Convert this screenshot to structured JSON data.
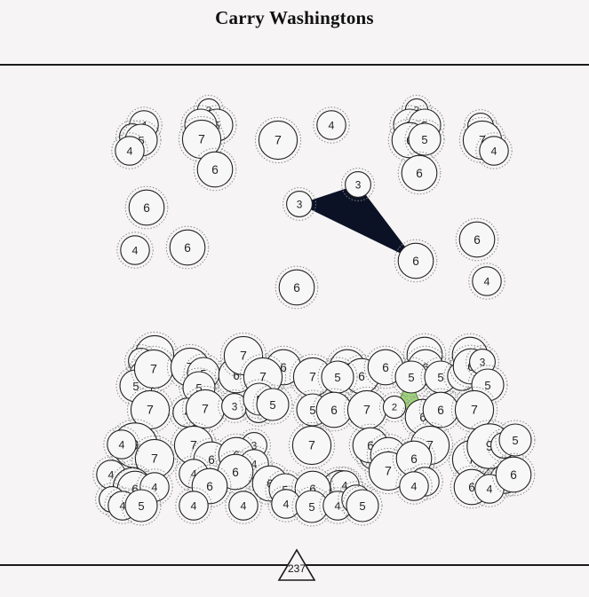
{
  "title": "Carry Washingtons",
  "score": "237",
  "colors": {
    "background": "#f6f4f5",
    "active_triangle": "#0c1226",
    "highlight_hex": "#9fd27a",
    "node_fill": "#f8f7f8",
    "node_stroke": "#222222"
  },
  "nodes": [
    {
      "label": "4"
    },
    {
      "label": "3"
    },
    {
      "label": "5"
    },
    {
      "label": "4"
    },
    {
      "label": "2"
    },
    {
      "label": "5"
    },
    {
      "label": "5"
    },
    {
      "label": "7"
    },
    {
      "label": "6"
    },
    {
      "label": "7"
    },
    {
      "label": "4"
    },
    {
      "label": "2"
    },
    {
      "label": "5"
    },
    {
      "label": "5"
    },
    {
      "label": "6"
    },
    {
      "label": "5"
    },
    {
      "label": "6"
    },
    {
      "label": "3"
    },
    {
      "label": "7"
    },
    {
      "label": "4"
    },
    {
      "label": "6"
    },
    {
      "label": "3"
    },
    {
      "label": "3"
    },
    {
      "label": "6"
    },
    {
      "label": "4"
    },
    {
      "label": "6"
    },
    {
      "label": "6"
    },
    {
      "label": "6"
    },
    {
      "label": "4"
    },
    {
      "label": "6"
    },
    {
      "label": "7"
    },
    {
      "label": "3"
    },
    {
      "label": "2"
    },
    {
      "label": "5"
    },
    {
      "label": "7"
    },
    {
      "label": "7"
    },
    {
      "label": "5"
    },
    {
      "label": "5"
    },
    {
      "label": "6"
    },
    {
      "label": "7"
    },
    {
      "label": "6"
    },
    {
      "label": "7"
    },
    {
      "label": "7"
    },
    {
      "label": "6"
    },
    {
      "label": "6"
    },
    {
      "label": "5"
    },
    {
      "label": "6"
    },
    {
      "label": "6"
    },
    {
      "label": "5"
    },
    {
      "label": "6"
    },
    {
      "label": "5"
    },
    {
      "label": "4"
    },
    {
      "label": "6"
    },
    {
      "label": "3"
    },
    {
      "label": "5"
    },
    {
      "label": "7"
    },
    {
      "label": "4"
    },
    {
      "label": "7"
    },
    {
      "label": "3"
    },
    {
      "label": "3"
    },
    {
      "label": "5"
    },
    {
      "label": "5"
    },
    {
      "label": "5"
    },
    {
      "label": "6"
    },
    {
      "label": "7"
    },
    {
      "label": "2"
    },
    {
      "label": "6"
    },
    {
      "label": "6"
    },
    {
      "label": "7"
    },
    {
      "label": "9"
    },
    {
      "label": "7"
    },
    {
      "label": "4"
    },
    {
      "label": "7"
    },
    {
      "label": "6"
    },
    {
      "label": "3"
    },
    {
      "label": "6"
    },
    {
      "label": "4"
    },
    {
      "label": "6"
    },
    {
      "label": "7"
    },
    {
      "label": "4"
    },
    {
      "label": "6"
    },
    {
      "label": "6"
    },
    {
      "label": "7"
    },
    {
      "label": "7"
    },
    {
      "label": "6"
    },
    {
      "label": "4"
    },
    {
      "label": "7"
    },
    {
      "label": "9"
    },
    {
      "label": "3"
    },
    {
      "label": "5"
    },
    {
      "label": "4"
    },
    {
      "label": "7"
    },
    {
      "label": "4"
    },
    {
      "label": "6"
    },
    {
      "label": "6"
    },
    {
      "label": "5"
    },
    {
      "label": "6"
    },
    {
      "label": "4"
    },
    {
      "label": "7"
    },
    {
      "label": "4"
    },
    {
      "label": "6"
    },
    {
      "label": "4"
    },
    {
      "label": "3"
    },
    {
      "label": "4"
    },
    {
      "label": "6"
    },
    {
      "label": "4"
    },
    {
      "label": "4"
    },
    {
      "label": "6"
    },
    {
      "label": "5"
    },
    {
      "label": "4"
    },
    {
      "label": "4"
    },
    {
      "label": "4"
    },
    {
      "label": "5"
    },
    {
      "label": "4"
    },
    {
      "label": "4"
    },
    {
      "label": "5"
    }
  ]
}
